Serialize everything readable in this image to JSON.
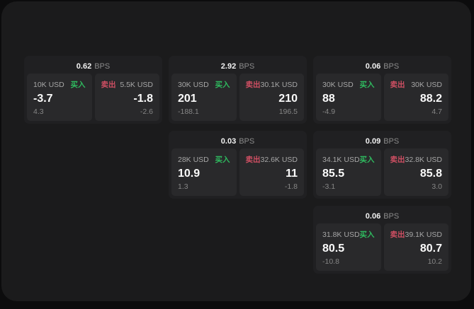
{
  "labels": {
    "bps_unit": "BPS",
    "buy": "买入",
    "sell": "卖出"
  },
  "colors": {
    "buy": "#2fba5f",
    "sell": "#cf4f63",
    "window_bg": "#1b1b1c",
    "card_bg": "#202022",
    "panel_bg": "#29292b"
  },
  "cards": [
    {
      "row": 0,
      "col": 0,
      "bps": "0.62",
      "buy": {
        "amount": "10K USD",
        "value": "-3.7",
        "delta": "4.3"
      },
      "sell": {
        "amount": "5.5K USD",
        "value": "-1.8",
        "delta": "-2.6"
      }
    },
    {
      "row": 0,
      "col": 1,
      "bps": "2.92",
      "buy": {
        "amount": "30K USD",
        "value": "201",
        "delta": "-188.1"
      },
      "sell": {
        "amount": "30.1K USD",
        "value": "210",
        "delta": "196.5"
      }
    },
    {
      "row": 0,
      "col": 2,
      "bps": "0.06",
      "buy": {
        "amount": "30K USD",
        "value": "88",
        "delta": "-4.9"
      },
      "sell": {
        "amount": "30K USD",
        "value": "88.2",
        "delta": "4.7"
      }
    },
    {
      "row": 1,
      "col": 1,
      "bps": "0.03",
      "buy": {
        "amount": "28K USD",
        "value": "10.9",
        "delta": "1.3"
      },
      "sell": {
        "amount": "32.6K USD",
        "value": "11",
        "delta": "-1.8"
      }
    },
    {
      "row": 1,
      "col": 2,
      "bps": "0.09",
      "buy": {
        "amount": "34.1K USD",
        "value": "85.5",
        "delta": "-3.1"
      },
      "sell": {
        "amount": "32.8K USD",
        "value": "85.8",
        "delta": "3.0"
      }
    },
    {
      "row": 2,
      "col": 2,
      "bps": "0.06",
      "buy": {
        "amount": "31.8K USD",
        "value": "80.5",
        "delta": "-10.8"
      },
      "sell": {
        "amount": "39.1K USD",
        "value": "80.7",
        "delta": "10.2"
      }
    }
  ]
}
